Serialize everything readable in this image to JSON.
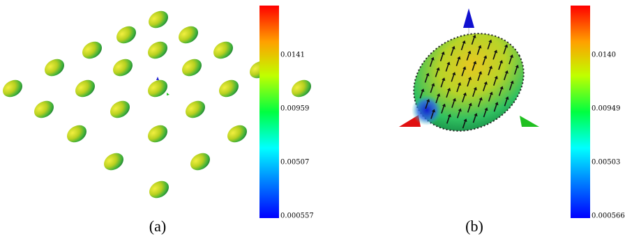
{
  "panels": [
    {
      "label": "(a)",
      "colorbar": {
        "ticks": [
          "0.000557",
          "0.00507",
          "0.00959",
          "0.0141"
        ]
      }
    },
    {
      "label": "(b)",
      "colorbar": {
        "ticks": [
          "0.000566",
          "0.00503",
          "0.00949",
          "0.0140"
        ]
      }
    }
  ]
}
